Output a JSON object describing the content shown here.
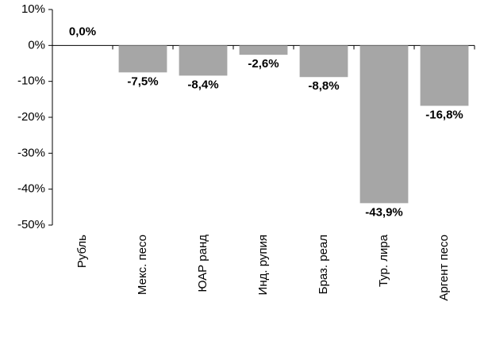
{
  "chart_data": {
    "type": "bar",
    "categories": [
      "Рубль",
      "Мекс. песо",
      "ЮАР ранд",
      "Инд. рупия",
      "Браз. реал",
      "Тур. лира",
      "Аргент песо"
    ],
    "values": [
      0.0,
      -7.5,
      -8.4,
      -2.6,
      -8.8,
      -43.9,
      -16.8
    ],
    "value_labels": [
      "0,0%",
      "-7,5%",
      "-8,4%",
      "-2,6%",
      "-8,8%",
      "-43,9%",
      "-16,8%"
    ],
    "color": "#a6a6a6",
    "ylim": [
      -50,
      10
    ],
    "yticks": [
      {
        "value": 10,
        "label": "10%"
      },
      {
        "value": 0,
        "label": "0%"
      },
      {
        "value": -10,
        "label": "-10%"
      },
      {
        "value": -20,
        "label": "-20%"
      },
      {
        "value": -30,
        "label": "-30%"
      },
      {
        "value": -40,
        "label": "-40%"
      },
      {
        "value": -50,
        "label": "-50%"
      }
    ],
    "grid": false
  }
}
